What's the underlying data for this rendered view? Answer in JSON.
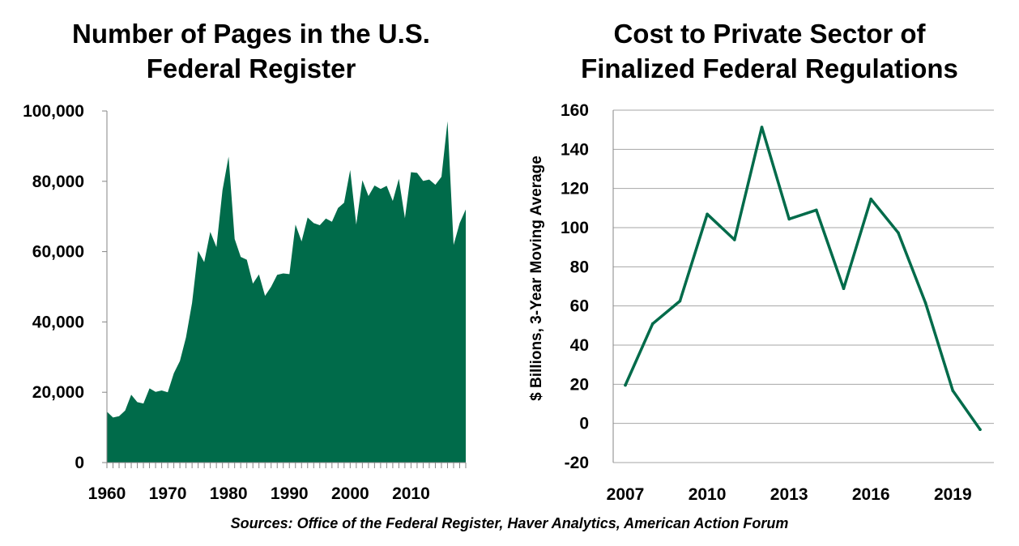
{
  "source_note": "Sources: Office of the Federal Register, Haver Analytics, American Action Forum",
  "colors": {
    "series": "#006b4a",
    "grid": "#a6a6a6",
    "axis": "#868686"
  },
  "chart_data": [
    {
      "type": "area",
      "title_lines": [
        "Number of Pages in the U.S.",
        "Federal Register"
      ],
      "xlabel": "",
      "ylabel": "",
      "x_tick_labels": [
        "1960",
        "1970",
        "1980",
        "1990",
        "2000",
        "2010"
      ],
      "y_tick_labels": [
        "0",
        "20,000",
        "40,000",
        "60,000",
        "80,000",
        "100,000"
      ],
      "ylim": [
        0,
        100000
      ],
      "xlim": [
        1960,
        2019
      ],
      "grid": false,
      "series": [
        {
          "x": [
            1960,
            1961,
            1962,
            1963,
            1964,
            1965,
            1966,
            1967,
            1968,
            1969,
            1970,
            1971,
            1972,
            1973,
            1974,
            1975,
            1976,
            1977,
            1978,
            1979,
            1980,
            1981,
            1982,
            1983,
            1984,
            1985,
            1986,
            1987,
            1988,
            1989,
            1990,
            1991,
            1992,
            1993,
            1994,
            1995,
            1996,
            1997,
            1998,
            1999,
            2000,
            2001,
            2002,
            2003,
            2004,
            2005,
            2006,
            2007,
            2008,
            2009,
            2010,
            2011,
            2012,
            2013,
            2014,
            2015,
            2016,
            2017,
            2018,
            2019
          ],
          "values": [
            14500,
            12800,
            13200,
            14800,
            19300,
            17200,
            16800,
            21100,
            20100,
            20500,
            20000,
            25400,
            28900,
            35600,
            45400,
            60200,
            57000,
            65600,
            61300,
            77500,
            87000,
            63600,
            58500,
            57700,
            50900,
            53500,
            47400,
            50000,
            53400,
            53800,
            53600,
            67700,
            62900,
            69700,
            68100,
            67500,
            69400,
            68500,
            72400,
            73900,
            83200,
            67700,
            80300,
            75800,
            78800,
            77800,
            78700,
            74400,
            80700,
            69500,
            82600,
            82400,
            80100,
            80500,
            79000,
            81300,
            97100,
            61900,
            68100,
            72000
          ]
        }
      ]
    },
    {
      "type": "line",
      "title_lines": [
        "Cost to Private Sector of",
        "Finalized Federal Regulations"
      ],
      "xlabel": "",
      "ylabel": "$ Billions, 3-Year Moving Average",
      "x_tick_labels": [
        "2007",
        "2010",
        "2013",
        "2016",
        "2019"
      ],
      "y_tick_labels": [
        "-20",
        "0",
        "20",
        "40",
        "60",
        "80",
        "100",
        "120",
        "140",
        "160"
      ],
      "ylim": [
        -20,
        160
      ],
      "xlim": [
        2007,
        2020
      ],
      "grid": true,
      "series": [
        {
          "x": [
            2007,
            2008,
            2009,
            2010,
            2011,
            2012,
            2013,
            2014,
            2015,
            2016,
            2017,
            2018,
            2019,
            2020
          ],
          "values": [
            19.5,
            50.9,
            62.5,
            106.9,
            93.8,
            151.3,
            104.4,
            109.0,
            68.9,
            114.6,
            97.4,
            61.5,
            16.7,
            -3.1
          ]
        }
      ]
    }
  ]
}
